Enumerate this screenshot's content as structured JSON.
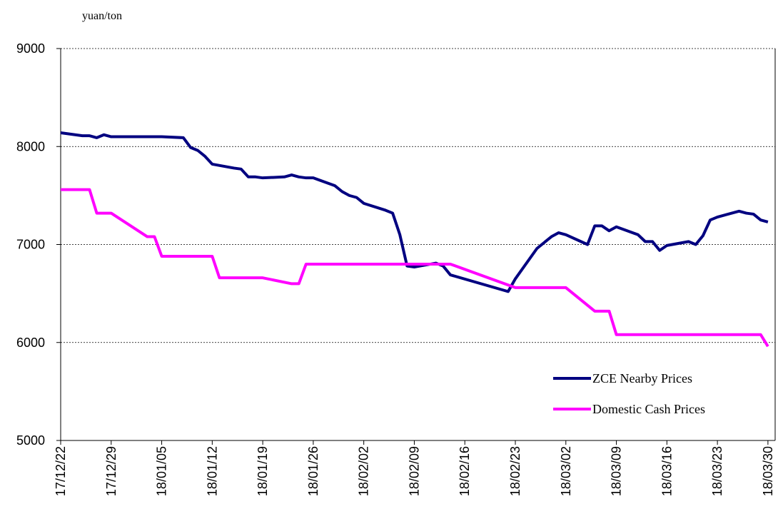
{
  "chart_data": {
    "type": "line",
    "y_label": "yuan/ton",
    "xlim": [
      "17/12/22",
      "18/03/31"
    ],
    "xticks": [
      "17/12/22",
      "17/12/29",
      "18/01/05",
      "18/01/12",
      "18/01/19",
      "18/01/26",
      "18/02/02",
      "18/02/09",
      "18/02/16",
      "18/02/23",
      "18/03/02",
      "18/03/09",
      "18/03/16",
      "18/03/23",
      "18/03/30"
    ],
    "ylim": [
      5000,
      9000
    ],
    "yticks": [
      5000,
      6000,
      7000,
      8000,
      9000
    ],
    "grid": true,
    "legend": "lower right",
    "series": [
      {
        "name": "ZCE Nearby Prices",
        "color": "#000080",
        "x": [
          "17/12/22",
          "17/12/25",
          "17/12/26",
          "17/12/27",
          "17/12/28",
          "17/12/29",
          "18/01/02",
          "18/01/03",
          "18/01/04",
          "18/01/05",
          "18/01/08",
          "18/01/09",
          "18/01/10",
          "18/01/11",
          "18/01/12",
          "18/01/15",
          "18/01/16",
          "18/01/17",
          "18/01/18",
          "18/01/19",
          "18/01/22",
          "18/01/23",
          "18/01/24",
          "18/01/25",
          "18/01/26",
          "18/01/29",
          "18/01/30",
          "18/01/31",
          "18/02/01",
          "18/02/02",
          "18/02/05",
          "18/02/06",
          "18/02/07",
          "18/02/08",
          "18/02/09",
          "18/02/12",
          "18/02/13",
          "18/02/14",
          "18/02/22",
          "18/02/23",
          "18/02/26",
          "18/02/27",
          "18/02/28",
          "18/03/01",
          "18/03/02",
          "18/03/05",
          "18/03/06",
          "18/03/07",
          "18/03/08",
          "18/03/09",
          "18/03/12",
          "18/03/13",
          "18/03/14",
          "18/03/15",
          "18/03/16",
          "18/03/19",
          "18/03/20",
          "18/03/21",
          "18/03/22",
          "18/03/23",
          "18/03/26",
          "18/03/27",
          "18/03/28",
          "18/03/29",
          "18/03/30"
        ],
        "values": [
          8140,
          8110,
          8110,
          8090,
          8120,
          8100,
          8100,
          8100,
          8100,
          8100,
          8090,
          7990,
          7960,
          7900,
          7820,
          7780,
          7770,
          7690,
          7690,
          7680,
          7690,
          7710,
          7690,
          7680,
          7680,
          7600,
          7540,
          7500,
          7480,
          7420,
          7350,
          7320,
          7100,
          6780,
          6770,
          6810,
          6780,
          6690,
          6520,
          6650,
          6960,
          7020,
          7080,
          7120,
          7100,
          7000,
          7190,
          7190,
          7140,
          7180,
          7100,
          7030,
          7030,
          6940,
          6990,
          7030,
          7000,
          7090,
          7250,
          7280,
          7340,
          7320,
          7310,
          7250,
          7230
        ]
      },
      {
        "name": "Domestic Cash Prices",
        "color": "#ff00ff",
        "x": [
          "17/12/22",
          "17/12/26",
          "17/12/27",
          "17/12/29",
          "18/01/03",
          "18/01/04",
          "18/01/05",
          "18/01/12",
          "18/01/13",
          "18/01/19",
          "18/01/23",
          "18/01/24",
          "18/01/25",
          "18/02/14",
          "18/02/23",
          "18/03/02",
          "18/03/06",
          "18/03/08",
          "18/03/09",
          "18/03/29",
          "18/03/30"
        ],
        "values": [
          7560,
          7560,
          7320,
          7320,
          7080,
          7080,
          6880,
          6880,
          6660,
          6660,
          6600,
          6600,
          6800,
          6800,
          6560,
          6560,
          6320,
          6320,
          6080,
          6080,
          5960
        ]
      }
    ]
  }
}
